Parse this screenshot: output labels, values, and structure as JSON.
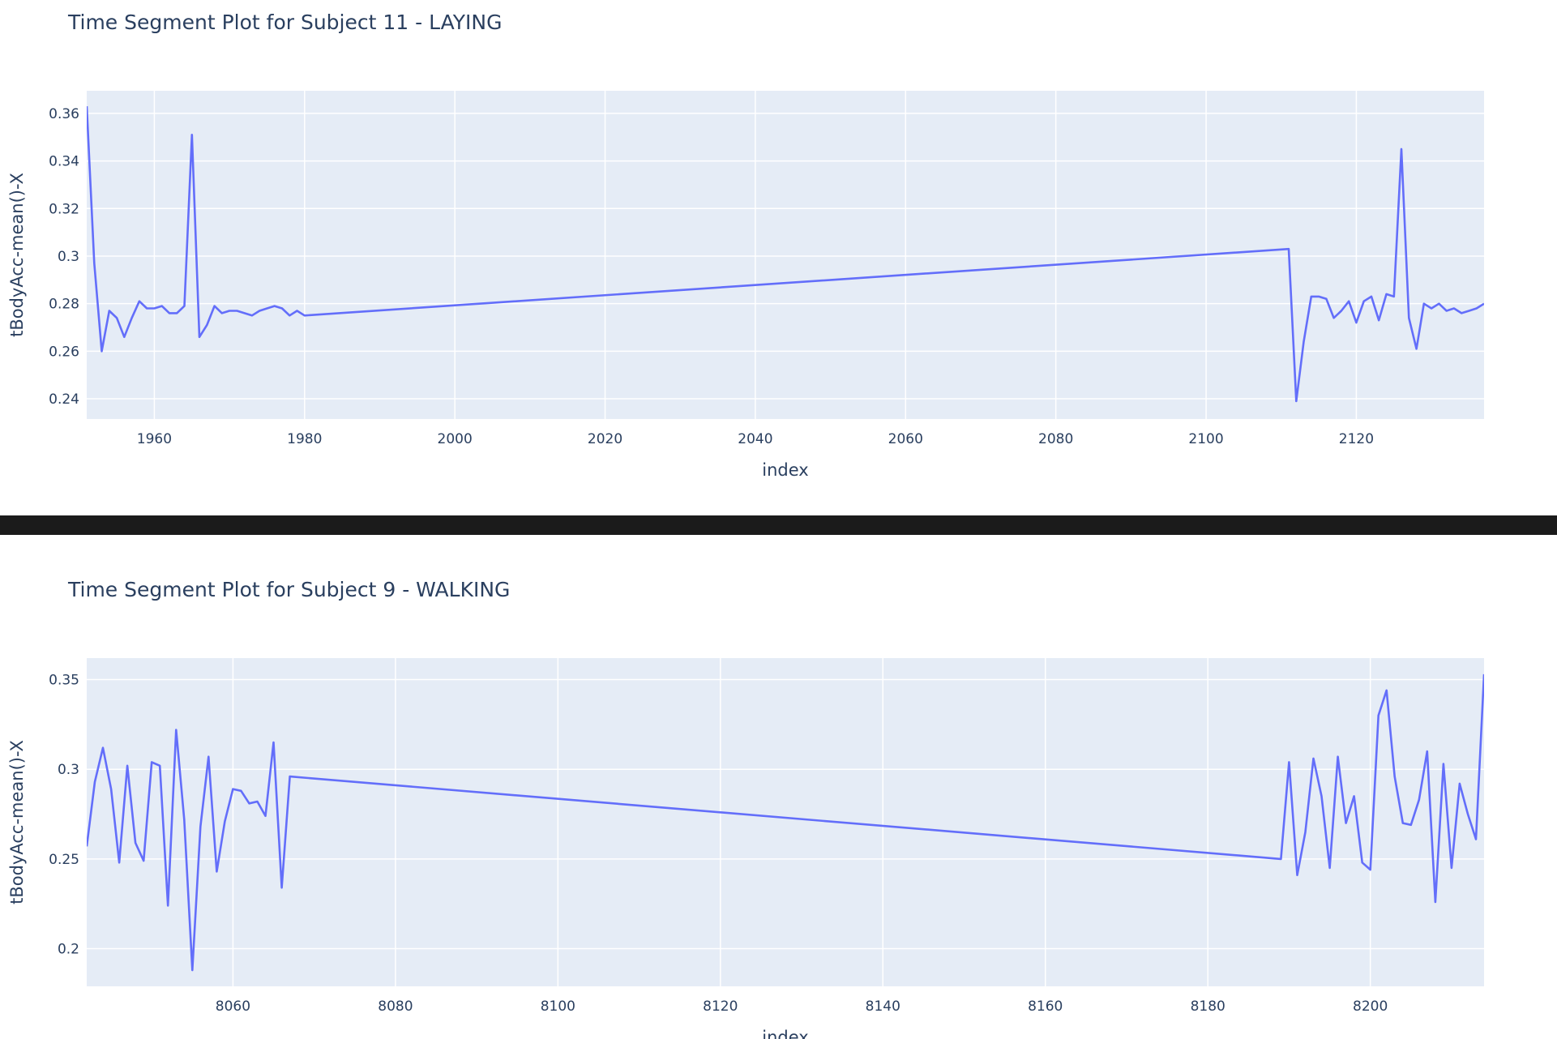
{
  "chart_data": [
    {
      "type": "line",
      "title": "Time Segment Plot for Subject 11 - LAYING",
      "xlabel": "index",
      "ylabel": "tBodyAcc-mean()-X",
      "xlim": [
        1951,
        2137
      ],
      "ylim": [
        0.2315,
        0.3695
      ],
      "xticks": [
        1960,
        1980,
        2000,
        2020,
        2040,
        2060,
        2080,
        2100,
        2120
      ],
      "xtick_labels": [
        "1960",
        "1980",
        "2000",
        "2020",
        "2040",
        "2060",
        "2080",
        "2100",
        "2120"
      ],
      "yticks": [
        0.24,
        0.26,
        0.28,
        0.3,
        0.32,
        0.34,
        0.36
      ],
      "ytick_labels": [
        "0.24",
        "0.26",
        "0.28",
        "0.3",
        "0.32",
        "0.34",
        "0.36"
      ],
      "color": "#636efa",
      "series": [
        {
          "name": "tBodyAcc-mean()-X",
          "x": [
            1951,
            1952,
            1953,
            1954,
            1955,
            1956,
            1957,
            1958,
            1959,
            1960,
            1961,
            1962,
            1963,
            1964,
            1965,
            1966,
            1967,
            1968,
            1969,
            1970,
            1971,
            1972,
            1973,
            1974,
            1975,
            1976,
            1977,
            1978,
            1979,
            1980,
            2111,
            2112,
            2113,
            2114,
            2115,
            2116,
            2117,
            2118,
            2119,
            2120,
            2121,
            2122,
            2123,
            2124,
            2125,
            2126,
            2127,
            2128,
            2129,
            2130,
            2131,
            2132,
            2133,
            2134,
            2135,
            2136,
            2137
          ],
          "y": [
            0.363,
            0.297,
            0.26,
            0.277,
            0.274,
            0.266,
            0.274,
            0.281,
            0.278,
            0.278,
            0.279,
            0.276,
            0.276,
            0.279,
            0.351,
            0.266,
            0.271,
            0.279,
            0.276,
            0.277,
            0.277,
            0.276,
            0.275,
            0.277,
            0.278,
            0.279,
            0.278,
            0.275,
            0.277,
            0.275,
            0.303,
            0.239,
            0.264,
            0.283,
            0.283,
            0.282,
            0.274,
            0.277,
            0.281,
            0.272,
            0.281,
            0.283,
            0.273,
            0.284,
            0.283,
            0.345,
            0.274,
            0.261,
            0.28,
            0.278,
            0.28,
            0.277,
            0.278,
            0.276,
            0.277,
            0.278,
            0.28
          ]
        }
      ]
    },
    {
      "type": "line",
      "title": "Time Segment Plot for Subject 9 - WALKING",
      "xlabel": "index",
      "ylabel": "tBodyAcc-mean()-X",
      "xlim": [
        8042,
        8214
      ],
      "ylim": [
        0.179,
        0.362
      ],
      "xticks": [
        8060,
        8080,
        8100,
        8120,
        8140,
        8160,
        8180,
        8200
      ],
      "xtick_labels": [
        "8060",
        "8080",
        "8100",
        "8120",
        "8140",
        "8160",
        "8180",
        "8200"
      ],
      "yticks": [
        0.2,
        0.25,
        0.3,
        0.35
      ],
      "ytick_labels": [
        "0.2",
        "0.25",
        "0.3",
        "0.35"
      ],
      "color": "#636efa",
      "series": [
        {
          "name": "tBodyAcc-mean()-X",
          "x": [
            8042,
            8043,
            8044,
            8045,
            8046,
            8047,
            8048,
            8049,
            8050,
            8051,
            8052,
            8053,
            8054,
            8055,
            8056,
            8057,
            8058,
            8059,
            8060,
            8061,
            8062,
            8063,
            8064,
            8065,
            8066,
            8067,
            8189,
            8190,
            8191,
            8192,
            8193,
            8194,
            8195,
            8196,
            8197,
            8198,
            8199,
            8200,
            8201,
            8202,
            8203,
            8204,
            8205,
            8206,
            8207,
            8208,
            8209,
            8210,
            8211,
            8212,
            8213,
            8214
          ],
          "y": [
            0.257,
            0.293,
            0.312,
            0.289,
            0.248,
            0.302,
            0.259,
            0.249,
            0.304,
            0.302,
            0.224,
            0.322,
            0.272,
            0.188,
            0.268,
            0.307,
            0.243,
            0.271,
            0.289,
            0.288,
            0.281,
            0.282,
            0.274,
            0.315,
            0.234,
            0.296,
            0.25,
            0.304,
            0.241,
            0.265,
            0.306,
            0.285,
            0.245,
            0.307,
            0.27,
            0.285,
            0.248,
            0.244,
            0.33,
            0.344,
            0.296,
            0.27,
            0.269,
            0.283,
            0.31,
            0.226,
            0.303,
            0.245,
            0.292,
            0.275,
            0.261,
            0.353
          ]
        }
      ]
    }
  ]
}
